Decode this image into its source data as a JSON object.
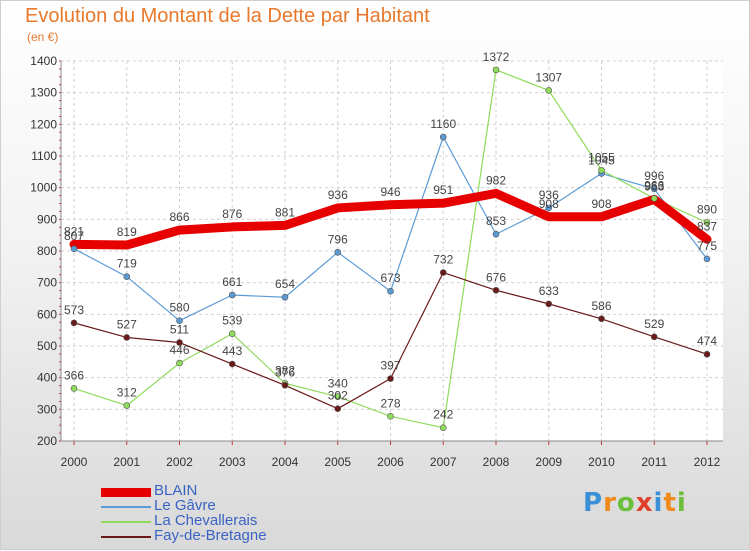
{
  "title": "Evolution du Montant de la Dette par Habitant",
  "subtitle": "(en €)",
  "logo": {
    "text": "Proxiti",
    "colors": [
      "#3a8fd6",
      "#f08a1c",
      "#6cbf3a",
      "#e2402b",
      "#3a8fd6",
      "#f08a1c",
      "#6cbf3a"
    ]
  },
  "chart_data": {
    "type": "line",
    "x": [
      "2000",
      "2001",
      "2002",
      "2003",
      "2004",
      "2005",
      "2006",
      "2007",
      "2008",
      "2009",
      "2010",
      "2011",
      "2012"
    ],
    "ylim": [
      200,
      1400
    ],
    "yticks": [
      200,
      300,
      400,
      500,
      600,
      700,
      800,
      900,
      1000,
      1100,
      1200,
      1300,
      1400
    ],
    "grid": true,
    "legend_position": "bottom-left",
    "series": [
      {
        "name": "BLAIN",
        "color": "#e60000",
        "values": [
          821,
          819,
          866,
          876,
          881,
          936,
          946,
          951,
          982,
          908,
          908,
          963,
          837
        ]
      },
      {
        "name": "Le Gâvre",
        "color": "#5b9bd5",
        "values": [
          807,
          719,
          580,
          661,
          654,
          796,
          673,
          1160,
          853,
          936,
          1045,
          996,
          775
        ]
      },
      {
        "name": "La Chevallerais",
        "color": "#8fdc5a",
        "values": [
          366,
          312,
          446,
          539,
          382,
          340,
          278,
          242,
          1372,
          1307,
          1055,
          966,
          890
        ]
      },
      {
        "name": "Fay-de-Bretagne",
        "color": "#6b1a1a",
        "values": [
          573,
          527,
          511,
          443,
          376,
          302,
          397,
          732,
          676,
          633,
          586,
          529,
          474
        ]
      }
    ]
  }
}
